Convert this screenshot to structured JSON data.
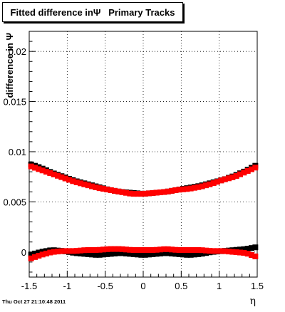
{
  "chart_data": {
    "type": "scatter",
    "title": "Fitted difference inΨ   Primary Tracks",
    "xlabel": "η",
    "ylabel": "difference in Ψ",
    "xlim": [
      -1.5,
      1.5
    ],
    "ylim": [
      -0.0025,
      0.022
    ],
    "x_ticks": [
      "-1.5",
      "-1",
      "-0.5",
      "0",
      "0.5",
      "1",
      "1.5"
    ],
    "y_ticks": [
      "0",
      "0.005",
      "0.01",
      "0.015",
      "0.02"
    ],
    "grid": true,
    "footer": "Thu Oct 27 21:10:48 2011",
    "series": [
      {
        "color": "#000000",
        "x": [
          -1.5,
          -1.35,
          -1.2,
          -1.05,
          -0.9,
          -0.75,
          -0.6,
          -0.45,
          -0.3,
          -0.15,
          0,
          0.15,
          0.3,
          0.45,
          0.6,
          0.75,
          0.9,
          1.05,
          1.2,
          1.35,
          1.5
        ],
        "y": [
          0.0088,
          0.0084,
          0.0079,
          0.0075,
          0.0071,
          0.0068,
          0.0065,
          0.0062,
          0.006,
          0.0059,
          0.0058,
          0.0059,
          0.006,
          0.0062,
          0.0064,
          0.0066,
          0.0069,
          0.0072,
          0.0076,
          0.0081,
          0.0087
        ]
      },
      {
        "color": "#ff0000",
        "x": [
          -1.5,
          -1.35,
          -1.2,
          -1.05,
          -0.9,
          -0.75,
          -0.6,
          -0.45,
          -0.3,
          -0.15,
          0,
          0.15,
          0.3,
          0.45,
          0.6,
          0.75,
          0.9,
          1.05,
          1.2,
          1.35,
          1.5
        ],
        "y": [
          0.0086,
          0.0082,
          0.0078,
          0.0074,
          0.007,
          0.0067,
          0.0064,
          0.0062,
          0.006,
          0.0058,
          0.0058,
          0.0059,
          0.006,
          0.0062,
          0.0063,
          0.0065,
          0.0068,
          0.0072,
          0.0075,
          0.008,
          0.0085
        ]
      },
      {
        "color": "#000000",
        "x": [
          -1.5,
          -1.35,
          -1.2,
          -1.05,
          -0.9,
          -0.75,
          -0.6,
          -0.45,
          -0.3,
          -0.15,
          0,
          0.15,
          0.3,
          0.45,
          0.6,
          0.75,
          0.9,
          1.05,
          1.2,
          1.35,
          1.5
        ],
        "y": [
          -0.0003,
          0.0,
          0.0002,
          0.0001,
          -0.0001,
          -0.0002,
          -0.0003,
          -0.0002,
          -0.0001,
          -0.0002,
          -0.0003,
          -0.0002,
          -0.0001,
          -0.0002,
          -0.0003,
          -0.0002,
          0.0,
          0.0001,
          0.0002,
          0.0003,
          0.0005
        ]
      },
      {
        "color": "#ff0000",
        "x": [
          -1.5,
          -1.35,
          -1.2,
          -1.05,
          -0.9,
          -0.75,
          -0.6,
          -0.45,
          -0.3,
          -0.15,
          0,
          0.15,
          0.3,
          0.45,
          0.6,
          0.75,
          0.9,
          1.05,
          1.2,
          1.35,
          1.5
        ],
        "y": [
          -0.0007,
          -0.0003,
          0.0,
          0.0001,
          0.0001,
          0.0002,
          0.0002,
          0.0003,
          0.0003,
          0.0002,
          0.0002,
          0.0002,
          0.0003,
          0.0002,
          0.0002,
          0.0002,
          0.0001,
          0.0001,
          0.0,
          -0.0001,
          -0.0005
        ]
      }
    ]
  }
}
